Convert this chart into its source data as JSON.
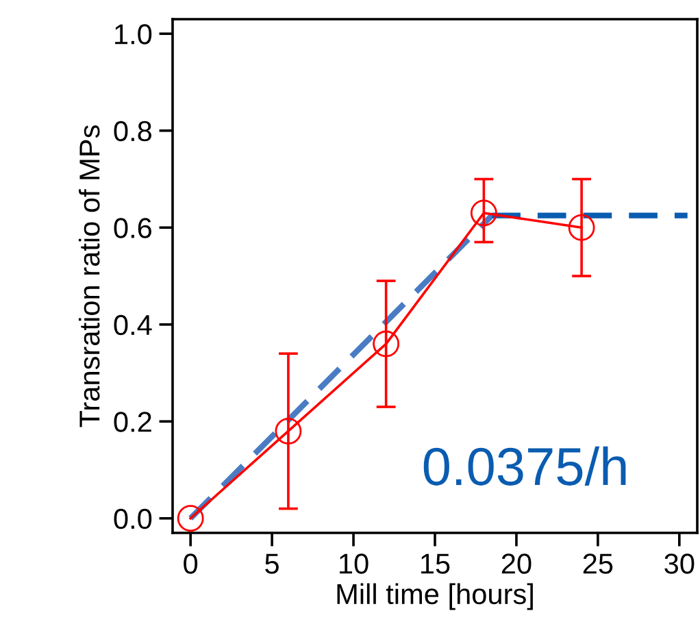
{
  "chart_data": {
    "type": "line",
    "xlabel": "Mill time [hours]",
    "ylabel": "Transration ratio of MPs",
    "xlim": [
      -1.1,
      31.1
    ],
    "ylim": [
      -0.03,
      1.03
    ],
    "xticks": [
      0,
      5,
      10,
      15,
      20,
      25,
      30
    ],
    "yticks": [
      {
        "value": 0,
        "label": "0.0"
      },
      {
        "value": 0.2,
        "label": "0.2"
      },
      {
        "value": 0.4,
        "label": "0.4"
      },
      {
        "value": 0.6,
        "label": "0.6"
      },
      {
        "value": 0.8,
        "label": "0.8"
      },
      {
        "value": 1,
        "label": "1.0"
      }
    ],
    "grid": false,
    "series": [
      {
        "color": "#4a7cc4",
        "line_style": "dashed",
        "marker": "none",
        "x": [
          0,
          18.5
        ],
        "values": [
          0,
          0.625
        ]
      },
      {
        "color": "#0a5cb0",
        "line_style": "dashed",
        "marker": "none",
        "x": [
          18.5,
          30.5
        ],
        "values": [
          0.625,
          0.625
        ]
      },
      {
        "color": "#ff0000",
        "line_style": "solid",
        "marker": "circle",
        "x": [
          0,
          6,
          12,
          18,
          24
        ],
        "values": [
          0,
          0.18,
          0.36,
          0.63,
          0.6
        ],
        "errors": [
          null,
          [
            0.02,
            0.34
          ],
          [
            0.23,
            0.49
          ],
          [
            0.57,
            0.7
          ],
          [
            0.5,
            0.7
          ]
        ]
      }
    ],
    "annotations": [
      "0.0375/h"
    ]
  }
}
